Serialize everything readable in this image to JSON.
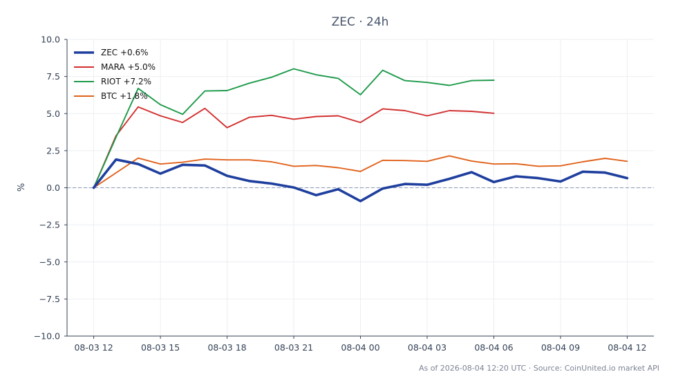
{
  "chart_data": {
    "type": "line",
    "title": "ZEC · 24h",
    "xlabel": "",
    "ylabel": "%",
    "ylim": [
      -10,
      10
    ],
    "xlim": [
      -1.2,
      25.2
    ],
    "x_unit": "hours since 2026-08-03 12:00 UTC",
    "grid": true,
    "zero_line": true,
    "legend_placement": "top-left",
    "x_tick_values": [
      0,
      3,
      6,
      9,
      12,
      15,
      18,
      21,
      24
    ],
    "x_tick_labels": [
      "08-03 12",
      "08-03 15",
      "08-03 18",
      "08-03 21",
      "08-04 00",
      "08-04 03",
      "08-04 06",
      "08-04 09",
      "08-04 12"
    ],
    "y_tick_values": [
      10,
      7.5,
      5,
      2.5,
      0,
      -2.5,
      -5,
      -7.5,
      -10
    ],
    "y_tick_labels": [
      "10.0",
      "7.5",
      "5.0",
      "2.5",
      "0.0",
      "−2.5",
      "−5.0",
      "−7.5",
      "−10.0"
    ],
    "series": [
      {
        "name": "ZEC +0.6%",
        "color": "#1f3f9e",
        "emphasis": true,
        "x": [
          0,
          1,
          2,
          3,
          4,
          5,
          6,
          7,
          8,
          9,
          10,
          11,
          12,
          13,
          14,
          15,
          16,
          17,
          18,
          19,
          20,
          21,
          22,
          23,
          24
        ],
        "values": [
          0.0,
          1.9,
          1.6,
          0.95,
          1.55,
          1.5,
          0.8,
          0.45,
          0.28,
          0.02,
          -0.5,
          -0.1,
          -0.9,
          -0.05,
          0.25,
          0.2,
          0.6,
          1.05,
          0.38,
          0.77,
          0.65,
          0.42,
          1.08,
          1.02,
          0.65
        ]
      },
      {
        "name": "MARA +5.0%",
        "color": "#d22f2f",
        "emphasis": false,
        "x": [
          0,
          1,
          2,
          3,
          4,
          5,
          6,
          7,
          8,
          9,
          10,
          11,
          12,
          13,
          14,
          15,
          16,
          17,
          18
        ],
        "values": [
          0.0,
          3.5,
          5.45,
          4.85,
          4.4,
          5.35,
          4.05,
          4.75,
          4.88,
          4.62,
          4.8,
          4.85,
          4.4,
          5.32,
          5.2,
          4.85,
          5.2,
          5.15,
          5.02
        ]
      },
      {
        "name": "RIOT +7.2%",
        "color": "#1d9a4a",
        "emphasis": false,
        "x": [
          0,
          1,
          2,
          3,
          4,
          5,
          6,
          7,
          8,
          9,
          10,
          11,
          12,
          13,
          14,
          15,
          16,
          17,
          18
        ],
        "values": [
          0.0,
          3.4,
          6.7,
          5.6,
          4.95,
          6.52,
          6.55,
          7.05,
          7.45,
          8.02,
          7.62,
          7.37,
          6.27,
          7.92,
          7.22,
          7.1,
          6.9,
          7.22,
          7.25
        ]
      },
      {
        "name": "BTC +1.8%",
        "color": "#e0611a",
        "emphasis": false,
        "x": [
          0,
          1,
          2,
          3,
          4,
          5,
          6,
          7,
          8,
          9,
          10,
          11,
          12,
          13,
          14,
          15,
          16,
          17,
          18,
          19,
          20,
          21,
          22,
          23,
          24
        ],
        "values": [
          0.0,
          1.0,
          2.0,
          1.6,
          1.72,
          1.93,
          1.88,
          1.88,
          1.75,
          1.45,
          1.5,
          1.35,
          1.1,
          1.85,
          1.83,
          1.78,
          2.15,
          1.8,
          1.6,
          1.62,
          1.45,
          1.48,
          1.75,
          1.98,
          1.78
        ]
      }
    ]
  },
  "footer": {
    "text": "As of 2026-08-04 12:20 UTC · Source: CoinUnited.io market API"
  }
}
